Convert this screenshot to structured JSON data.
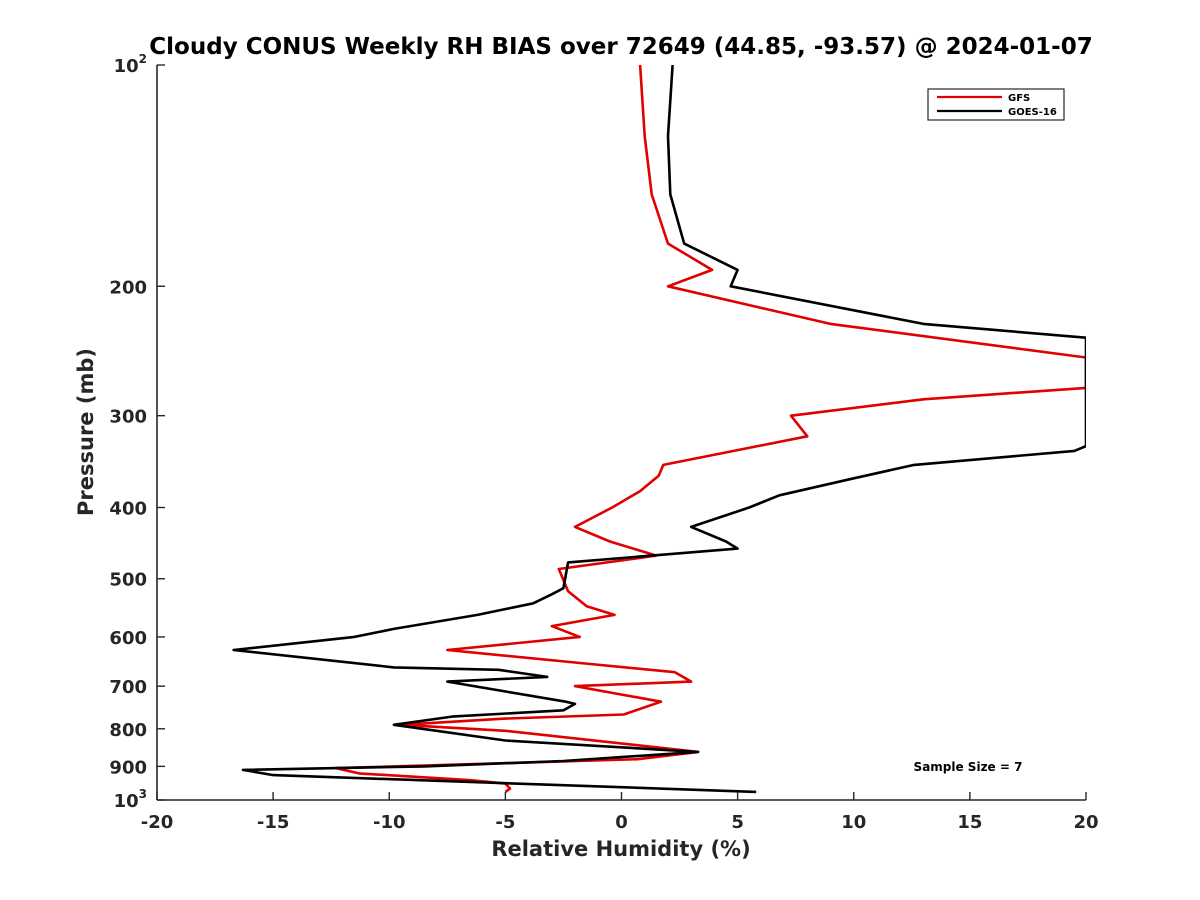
{
  "chart_data": {
    "type": "line",
    "title": "Cloudy CONUS Weekly RH BIAS over 72649 (44.85, -93.57) @ 2024-01-07",
    "xlabel": "Relative Humidity (%)",
    "ylabel": "Pressure (mb)",
    "xlim": [
      -20,
      20
    ],
    "ylim": [
      100,
      1000
    ],
    "y_scale": "log",
    "y_reversed": true,
    "grid": false,
    "legend_position": "top-right",
    "x_ticks": [
      -20,
      -15,
      -10,
      -5,
      0,
      5,
      10,
      15,
      20
    ],
    "x_tick_labels": [
      "-20",
      "-15",
      "-10",
      "-5",
      "0",
      "5",
      "10",
      "15",
      "20"
    ],
    "y_ticks": [
      {
        "value": 100,
        "base": "10",
        "exp": "2"
      },
      {
        "value": 200,
        "label": "200"
      },
      {
        "value": 300,
        "label": "300"
      },
      {
        "value": 400,
        "label": "400"
      },
      {
        "value": 500,
        "label": "500"
      },
      {
        "value": 600,
        "label": "600"
      },
      {
        "value": 700,
        "label": "700"
      },
      {
        "value": 800,
        "label": "800"
      },
      {
        "value": 900,
        "label": "900"
      },
      {
        "value": 1000,
        "base": "10",
        "exp": "3"
      }
    ],
    "annotation": "Sample Size = 7",
    "series": [
      {
        "name": "GFS",
        "color": "#e00000",
        "points": [
          [
            0.8,
            100
          ],
          [
            1.0,
            125
          ],
          [
            1.3,
            150
          ],
          [
            2.0,
            175
          ],
          [
            3.9,
            190
          ],
          [
            2.0,
            200
          ],
          [
            9.0,
            225
          ],
          [
            20.0,
            250
          ],
          [
            20.0,
            275
          ],
          [
            13.0,
            285
          ],
          [
            7.3,
            300
          ],
          [
            8.0,
            320
          ],
          [
            1.8,
            350
          ],
          [
            1.6,
            362
          ],
          [
            0.8,
            380
          ],
          [
            -0.4,
            400
          ],
          [
            -2.0,
            425
          ],
          [
            -0.5,
            445
          ],
          [
            1.5,
            465
          ],
          [
            -2.7,
            485
          ],
          [
            -2.3,
            520
          ],
          [
            -1.5,
            545
          ],
          [
            -0.3,
            560
          ],
          [
            -3.0,
            580
          ],
          [
            -1.8,
            600
          ],
          [
            -7.5,
            625
          ],
          [
            -2.0,
            650
          ],
          [
            2.3,
            670
          ],
          [
            3.0,
            690
          ],
          [
            -2.0,
            700
          ],
          [
            1.7,
            735
          ],
          [
            0.1,
            765
          ],
          [
            -5.0,
            775
          ],
          [
            -9.5,
            790
          ],
          [
            -5.0,
            805
          ],
          [
            3.3,
            860
          ],
          [
            0.7,
            880
          ],
          [
            -12.3,
            905
          ],
          [
            -11.3,
            920
          ],
          [
            -6.5,
            940
          ],
          [
            -5.0,
            950
          ],
          [
            -4.8,
            965
          ],
          [
            -5.0,
            975
          ]
        ]
      },
      {
        "name": "GOES-16",
        "color": "#000000",
        "points": [
          [
            2.2,
            100
          ],
          [
            2.0,
            125
          ],
          [
            2.1,
            150
          ],
          [
            2.7,
            175
          ],
          [
            5.0,
            190
          ],
          [
            4.7,
            200
          ],
          [
            13.0,
            225
          ],
          [
            20.0,
            235
          ],
          [
            20.0,
            330
          ],
          [
            19.5,
            335
          ],
          [
            12.6,
            350
          ],
          [
            10.0,
            365
          ],
          [
            6.8,
            385
          ],
          [
            5.5,
            400
          ],
          [
            3.0,
            425
          ],
          [
            4.5,
            445
          ],
          [
            5.0,
            455
          ],
          [
            -2.3,
            475
          ],
          [
            -2.5,
            515
          ],
          [
            -3.0,
            525
          ],
          [
            -3.8,
            540
          ],
          [
            -6.2,
            560
          ],
          [
            -9.8,
            585
          ],
          [
            -11.5,
            600
          ],
          [
            -16.7,
            625
          ],
          [
            -9.8,
            660
          ],
          [
            -5.3,
            665
          ],
          [
            -3.2,
            680
          ],
          [
            -7.5,
            690
          ],
          [
            -2.4,
            735
          ],
          [
            -2.0,
            740
          ],
          [
            -2.5,
            755
          ],
          [
            -7.3,
            770
          ],
          [
            -9.8,
            790
          ],
          [
            -5.0,
            830
          ],
          [
            3.3,
            860
          ],
          [
            -2.5,
            885
          ],
          [
            -8.5,
            900
          ],
          [
            -16.3,
            910
          ],
          [
            -15.0,
            925
          ],
          [
            5.8,
            975
          ]
        ]
      }
    ]
  }
}
